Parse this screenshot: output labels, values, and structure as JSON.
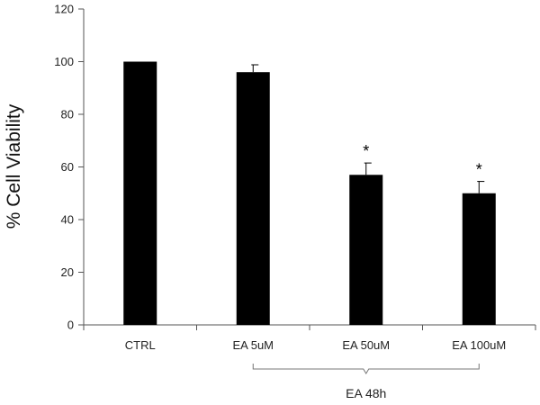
{
  "chart_data": {
    "type": "bar",
    "title": "",
    "xlabel": "",
    "ylabel": "% Cell Viability",
    "categories": [
      "CTRL",
      "EA 5uM",
      "EA 50uM",
      "EA 100uM"
    ],
    "values": [
      100,
      96,
      57,
      50
    ],
    "error": [
      0,
      2.8,
      4.5,
      4.5
    ],
    "significance": [
      "",
      "",
      "*",
      "*"
    ],
    "ylim": [
      0,
      120
    ],
    "yticks": [
      0,
      20,
      40,
      60,
      80,
      100,
      120
    ],
    "grid": false,
    "bar_color": "#000000",
    "group_bracket": {
      "label": "EA 48h",
      "from_category": 1,
      "to_category": 3
    }
  }
}
